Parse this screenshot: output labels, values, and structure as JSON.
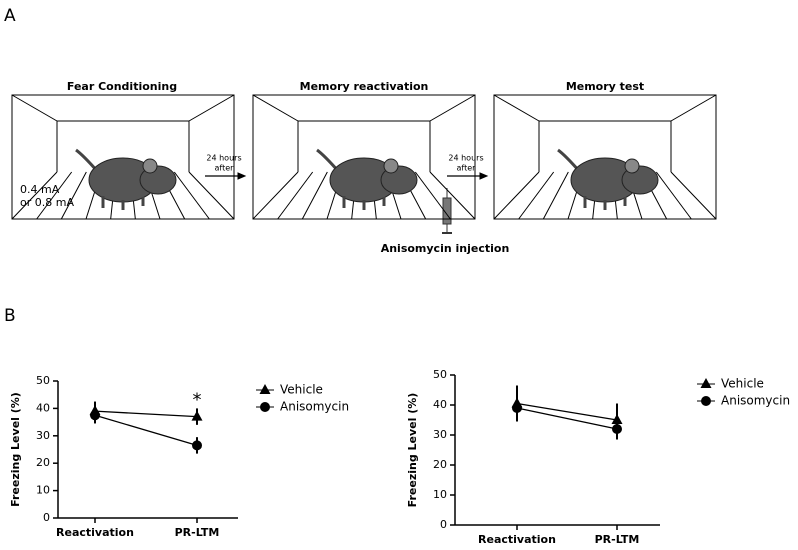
{
  "panels": {
    "a": "A",
    "b": "B"
  },
  "diagram": {
    "boxes": [
      {
        "title": "Fear Conditioning"
      },
      {
        "title": "Memory reactivation"
      },
      {
        "title": "Memory test"
      }
    ],
    "shock": [
      "0.4 mA",
      "or 0.8 mA"
    ],
    "arrows": [
      [
        "24 hours",
        "after"
      ],
      [
        "24 hours",
        "after"
      ]
    ],
    "injection": "Anisomycin injection"
  },
  "chart_data": [
    {
      "type": "line",
      "categories": [
        "Reactivation",
        "PR-LTM"
      ],
      "ylabel": "Freezing Level (%)",
      "ylim": [
        0,
        50
      ],
      "yticks": [
        0,
        10,
        20,
        30,
        40,
        50
      ],
      "annotation": "*",
      "series": [
        {
          "name": "Vehicle",
          "color": "#000000",
          "marker": "triangle",
          "values": [
            39,
            37
          ],
          "errors": [
            3.5,
            3
          ]
        },
        {
          "name": "Anisomycin",
          "color": "#000000",
          "marker": "circle",
          "values": [
            37.5,
            26.5
          ],
          "errors": [
            3,
            3
          ]
        }
      ]
    },
    {
      "type": "line",
      "categories": [
        "Reactivation",
        "PR-LTM"
      ],
      "ylabel": "Freezing Level (%)",
      "ylim": [
        0,
        50
      ],
      "yticks": [
        0,
        10,
        20,
        30,
        40,
        50
      ],
      "series": [
        {
          "name": "Vehicle",
          "color": "#000000",
          "marker": "triangle",
          "values": [
            40.5,
            35
          ],
          "errors": [
            6,
            5.5
          ]
        },
        {
          "name": "Anisomycin",
          "color": "#000000",
          "marker": "circle",
          "values": [
            39,
            32
          ],
          "errors": [
            4.5,
            3.5
          ]
        }
      ]
    }
  ]
}
